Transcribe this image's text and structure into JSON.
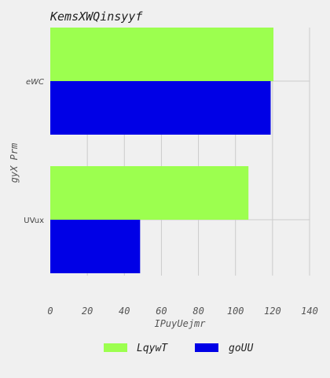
{
  "chart_data": {
    "type": "bar",
    "orientation": "horizontal",
    "title": "KemsXWQinsyyf",
    "xlabel": "IPuyUejmr",
    "ylabel": "gyX Prm",
    "categories": [
      "eWC",
      "UVux"
    ],
    "series": [
      {
        "name": "LqywT",
        "values": [
          120.5,
          107
        ],
        "color": "#9cff4f"
      },
      {
        "name": "goUU",
        "values": [
          119,
          48.5
        ],
        "color": "#0000e6"
      }
    ],
    "xlim": [
      0,
      140
    ],
    "xticks": [
      0,
      20,
      40,
      60,
      80,
      100,
      120,
      140
    ],
    "grid": true,
    "legend": "bottom-center"
  }
}
